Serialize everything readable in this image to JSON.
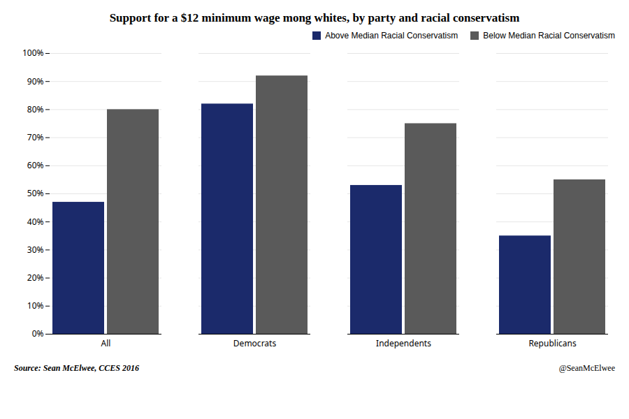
{
  "chart_data": {
    "type": "bar",
    "title": "Support for a $12 minimum wage  mong whites, by party and racial conservatism",
    "categories": [
      "All",
      "Democrats",
      "Independents",
      "Republicans"
    ],
    "series": [
      {
        "name": "Above Median Racial Conservatism",
        "color": "#1B2A6B",
        "values": [
          47,
          82,
          53,
          35
        ]
      },
      {
        "name": "Below Median Racial Conservatism",
        "color": "#5A5A5A",
        "values": [
          80,
          92,
          75,
          55
        ]
      }
    ],
    "ylim": [
      0,
      100
    ],
    "yticks": [
      {
        "value": 0,
        "label": "0%"
      },
      {
        "value": 10,
        "label": "10%"
      },
      {
        "value": 20,
        "label": "20%"
      },
      {
        "value": 30,
        "label": "30%"
      },
      {
        "value": 40,
        "label": "40%"
      },
      {
        "value": 50,
        "label": "50%"
      },
      {
        "value": 60,
        "label": "60%"
      },
      {
        "value": 70,
        "label": "70%"
      },
      {
        "value": 80,
        "label": "80%"
      },
      {
        "value": 90,
        "label": "90%"
      },
      {
        "value": 100,
        "label": "100%"
      }
    ],
    "grid": true,
    "legend": "upper right",
    "annotations": [
      "Source: Sean McElwee, CCES 2016",
      "@SeanMcElwee"
    ]
  }
}
